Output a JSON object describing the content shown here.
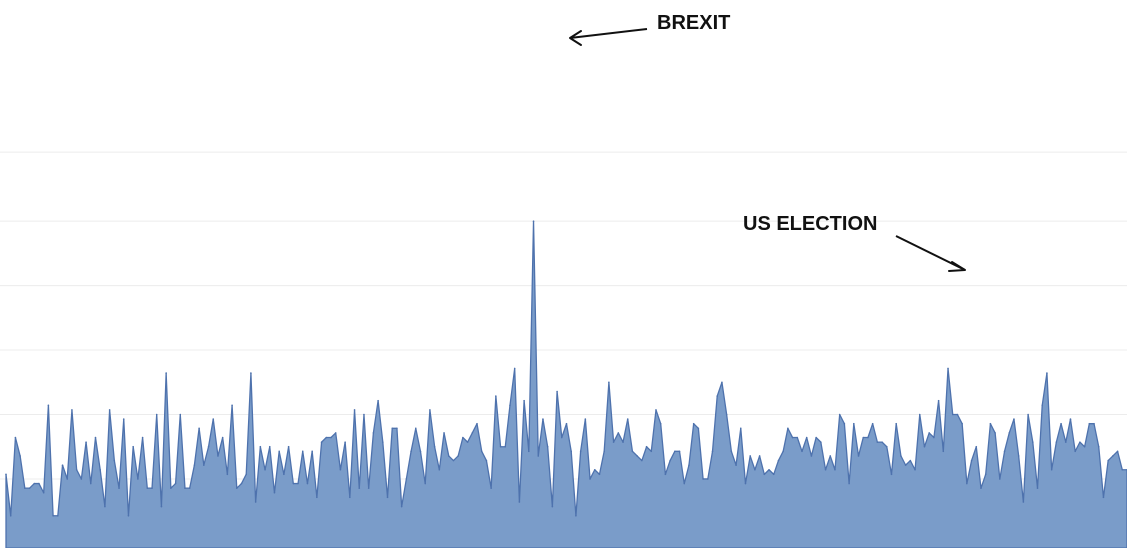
{
  "chart_data": {
    "type": "area",
    "ylim": [
      0,
      100
    ],
    "grid": true,
    "gridlines": [
      15,
      29,
      43,
      57,
      71,
      86
    ],
    "colors": {
      "fill": "#7a9cc9",
      "line": "#4e72ad"
    },
    "annotations": [
      {
        "text": "BREXIT",
        "x_index": 111
      },
      {
        "text": "US ELECTION",
        "x_index": 197
      }
    ],
    "series": [
      {
        "values": [
          16,
          7,
          24,
          20,
          13,
          13,
          14,
          14,
          12,
          31,
          7,
          7,
          18,
          15,
          30,
          17,
          15,
          23,
          14,
          24,
          17,
          9,
          30,
          19,
          13,
          28,
          7,
          22,
          15,
          24,
          13,
          13,
          29,
          9,
          38,
          13,
          14,
          29,
          13,
          13,
          18,
          26,
          18,
          22,
          28,
          20,
          24,
          16,
          31,
          13,
          14,
          16,
          38,
          10,
          22,
          17,
          22,
          12,
          21,
          16,
          22,
          14,
          14,
          21,
          14,
          21,
          11,
          23,
          24,
          24,
          25,
          17,
          23,
          11,
          30,
          13,
          29,
          13,
          25,
          32,
          23,
          11,
          26,
          26,
          9,
          15,
          21,
          26,
          21,
          14,
          30,
          22,
          17,
          25,
          20,
          19,
          20,
          24,
          23,
          25,
          27,
          21,
          19,
          13,
          33,
          22,
          22,
          31,
          39,
          10,
          32,
          21,
          71,
          20,
          28,
          22,
          9,
          34,
          24,
          27,
          21,
          7,
          21,
          28,
          15,
          17,
          16,
          21,
          36,
          23,
          25,
          23,
          28,
          21,
          20,
          19,
          22,
          21,
          30,
          27,
          16,
          19,
          21,
          21,
          14,
          18,
          27,
          26,
          15,
          15,
          21,
          33,
          36,
          29,
          21,
          18,
          26,
          14,
          20,
          17,
          20,
          16,
          17,
          16,
          19,
          21,
          26,
          24,
          24,
          21,
          24,
          20,
          24,
          23,
          17,
          20,
          17,
          29,
          27,
          14,
          27,
          20,
          24,
          24,
          27,
          23,
          23,
          22,
          16,
          27,
          20,
          18,
          19,
          17,
          29,
          22,
          25,
          24,
          32,
          21,
          39,
          29,
          29,
          27,
          14,
          19,
          22,
          13,
          16,
          27,
          25,
          15,
          21,
          25,
          28,
          20,
          10,
          29,
          23,
          13,
          31,
          38,
          17,
          23,
          27,
          23,
          28,
          21,
          23,
          22,
          27,
          27,
          22,
          11,
          19,
          20,
          21,
          17,
          17
        ]
      }
    ]
  }
}
